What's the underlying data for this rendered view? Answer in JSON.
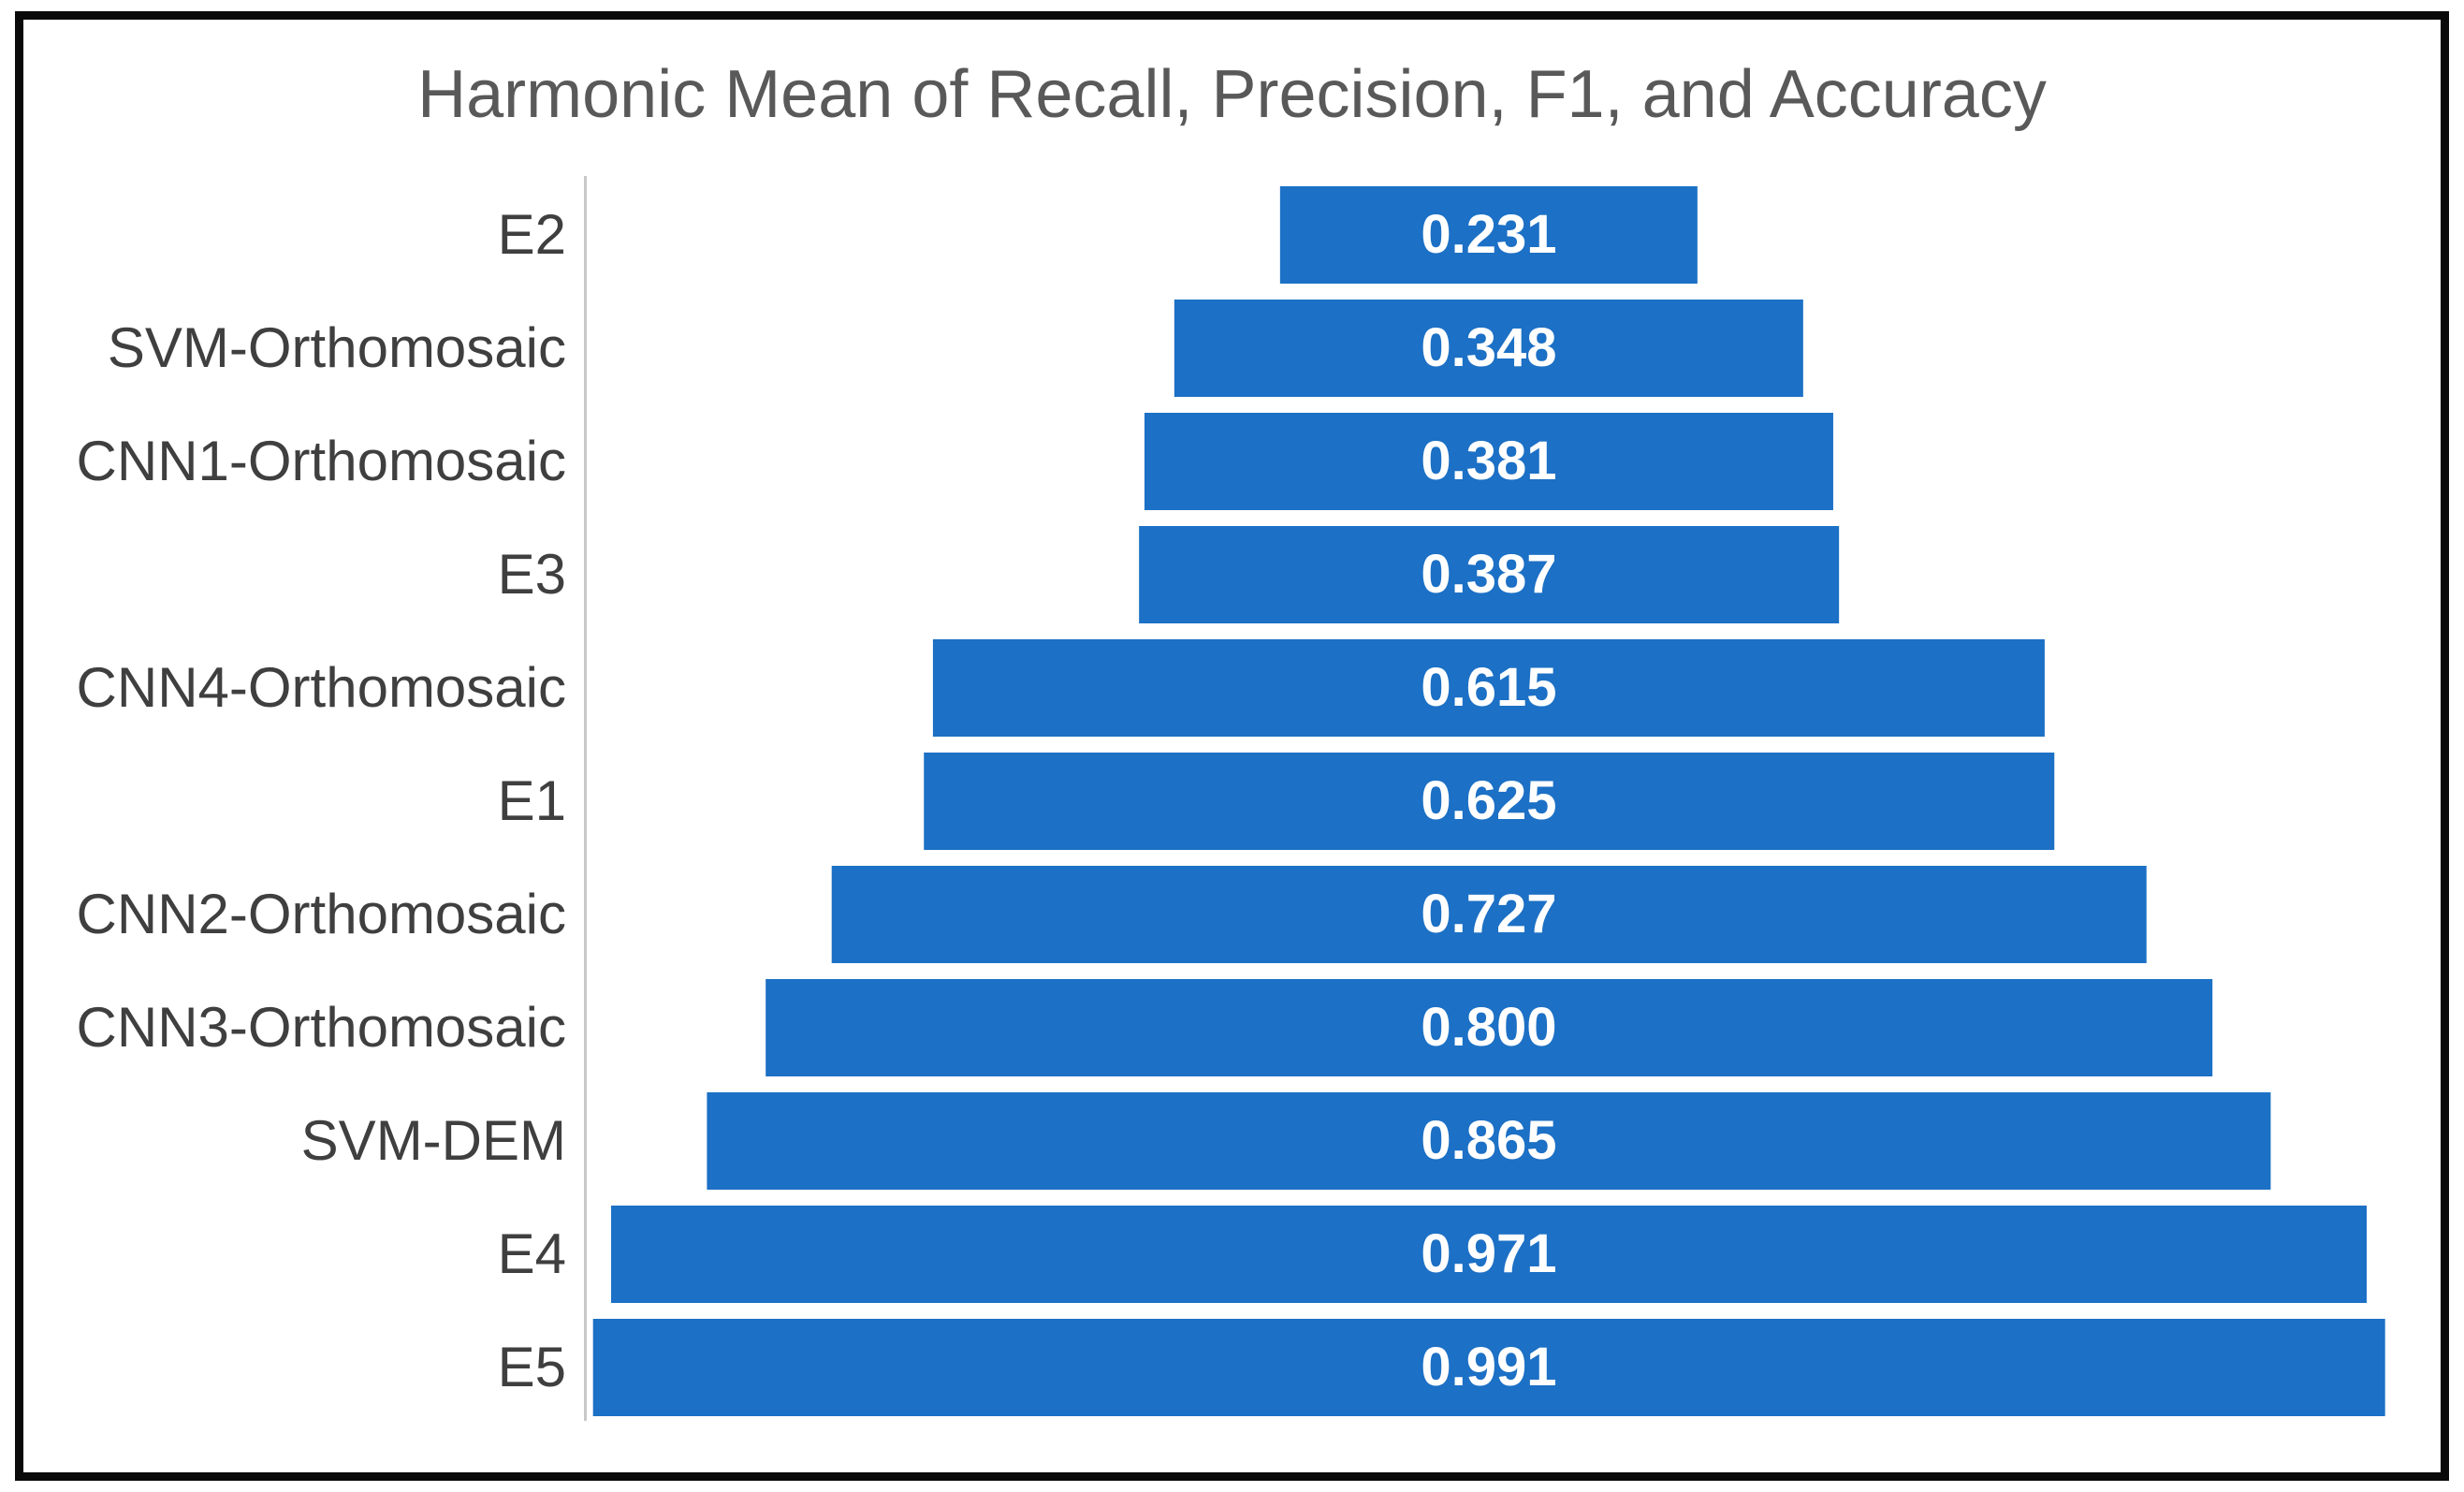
{
  "chart_data": {
    "type": "bar",
    "subtype": "horizontal-centered-funnel",
    "title": "Harmonic Mean of Recall, Precision, F1, and Accuracy",
    "categories": [
      "E2",
      "SVM-Orthomosaic",
      "CNN1-Orthomosaic",
      "E3",
      "CNN4-Orthomosaic",
      "E1",
      "CNN2-Orthomosaic",
      "CNN3-Orthomosaic",
      "SVM-DEM",
      "E4",
      "E5"
    ],
    "values": [
      0.231,
      0.348,
      0.381,
      0.387,
      0.615,
      0.625,
      0.727,
      0.8,
      0.865,
      0.971,
      0.991
    ],
    "value_labels": [
      "0.231",
      "0.348",
      "0.381",
      "0.387",
      "0.615",
      "0.625",
      "0.727",
      "0.800",
      "0.865",
      "0.971",
      "0.991"
    ],
    "xlabel": "",
    "ylabel": "",
    "xlim": [
      0,
      1
    ],
    "grid": false,
    "legend": "none",
    "bar_color": "#1c70c5",
    "value_label_color": "#ffffff",
    "category_label_color": "#3f3f3f",
    "title_color": "#595959",
    "axis_line_color": "#c9c9c9",
    "frame_border_color": "#0a0a0a",
    "background_color": "#ffffff"
  }
}
